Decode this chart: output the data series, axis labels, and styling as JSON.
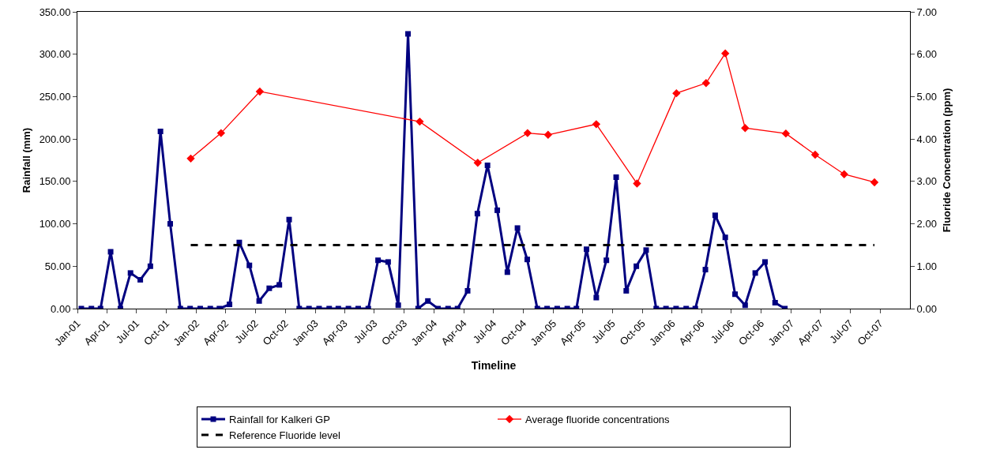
{
  "chart_data": {
    "type": "line",
    "xlabel": "Timeline",
    "ylabel": "Rainfall (mm)",
    "y2label": "Fluoride Concentration (ppm)",
    "xlim": [
      "2001-01-01",
      "2008-01-01"
    ],
    "xticks": [
      {
        "value": "2001-01-01",
        "label": "Jan-01"
      },
      {
        "value": "2001-04-01",
        "label": "Apr-01"
      },
      {
        "value": "2001-07-01",
        "label": "Jul-01"
      },
      {
        "value": "2001-10-01",
        "label": "Oct-01"
      },
      {
        "value": "2002-01-01",
        "label": "Jan-02"
      },
      {
        "value": "2002-04-01",
        "label": "Apr-02"
      },
      {
        "value": "2002-07-01",
        "label": "Jul-02"
      },
      {
        "value": "2002-10-01",
        "label": "Oct-02"
      },
      {
        "value": "2003-01-01",
        "label": "Jan-03"
      },
      {
        "value": "2003-04-01",
        "label": "Apr-03"
      },
      {
        "value": "2003-07-01",
        "label": "Jul-03"
      },
      {
        "value": "2003-10-01",
        "label": "Oct-03"
      },
      {
        "value": "2004-01-01",
        "label": "Jan-04"
      },
      {
        "value": "2004-04-01",
        "label": "Apr-04"
      },
      {
        "value": "2004-07-01",
        "label": "Jul-04"
      },
      {
        "value": "2004-10-01",
        "label": "Oct-04"
      },
      {
        "value": "2005-01-01",
        "label": "Jan-05"
      },
      {
        "value": "2005-04-01",
        "label": "Apr-05"
      },
      {
        "value": "2005-07-01",
        "label": "Jul-05"
      },
      {
        "value": "2005-10-01",
        "label": "Oct-05"
      },
      {
        "value": "2006-01-01",
        "label": "Jan-06"
      },
      {
        "value": "2006-04-01",
        "label": "Apr-06"
      },
      {
        "value": "2006-07-01",
        "label": "Jul-06"
      },
      {
        "value": "2006-10-01",
        "label": "Oct-06"
      },
      {
        "value": "2007-01-01",
        "label": "Jan-07"
      },
      {
        "value": "2007-04-01",
        "label": "Apr-07"
      },
      {
        "value": "2007-07-01",
        "label": "Jul-07"
      },
      {
        "value": "2007-10-01",
        "label": "Oct-07"
      }
    ],
    "ylim": [
      0,
      350
    ],
    "yticks": [
      {
        "value": 0,
        "label": "0.00"
      },
      {
        "value": 50,
        "label": "50.00"
      },
      {
        "value": 100,
        "label": "100.00"
      },
      {
        "value": 150,
        "label": "150.00"
      },
      {
        "value": 200,
        "label": "200.00"
      },
      {
        "value": 250,
        "label": "250.00"
      },
      {
        "value": 300,
        "label": "300.00"
      },
      {
        "value": 350,
        "label": "350.00"
      }
    ],
    "y2lim": [
      0,
      7
    ],
    "y2ticks": [
      {
        "value": 0,
        "label": "0.00"
      },
      {
        "value": 1,
        "label": "1.00"
      },
      {
        "value": 2,
        "label": "2.00"
      },
      {
        "value": 3,
        "label": "3.00"
      },
      {
        "value": 4,
        "label": "4.00"
      },
      {
        "value": 5,
        "label": "5.00"
      },
      {
        "value": 6,
        "label": "6.00"
      },
      {
        "value": 7,
        "label": "7.00"
      }
    ],
    "grid": false,
    "legend": "bottom",
    "series": [
      {
        "name": "Rainfall for Kalkeri GP",
        "color": "#000080",
        "marker": "square",
        "line_style": "solid",
        "x": [
          "2001-01-13",
          "2001-02-13",
          "2001-03-13",
          "2001-04-13",
          "2001-05-13",
          "2001-06-13",
          "2001-07-13",
          "2001-08-13",
          "2001-09-13",
          "2001-10-13",
          "2001-11-13",
          "2001-12-13",
          "2002-01-13",
          "2002-02-13",
          "2002-03-13",
          "2002-04-13",
          "2002-05-13",
          "2002-06-13",
          "2002-07-13",
          "2002-08-13",
          "2002-09-13",
          "2002-10-13",
          "2002-11-13",
          "2002-12-13",
          "2003-01-13",
          "2003-02-13",
          "2003-03-13",
          "2003-04-13",
          "2003-05-13",
          "2003-06-13",
          "2003-07-13",
          "2003-08-13",
          "2003-09-13",
          "2003-10-13",
          "2003-11-13",
          "2003-12-13",
          "2004-01-13",
          "2004-02-13",
          "2004-03-13",
          "2004-04-13",
          "2004-05-13",
          "2004-06-13",
          "2004-07-13",
          "2004-08-13",
          "2004-09-13",
          "2004-10-13",
          "2004-11-13",
          "2004-12-13",
          "2005-01-13",
          "2005-02-13",
          "2005-03-13",
          "2005-04-13",
          "2005-05-13",
          "2005-06-13",
          "2005-07-13",
          "2005-08-13",
          "2005-09-13",
          "2005-10-13",
          "2005-11-13",
          "2005-12-13",
          "2006-01-13",
          "2006-02-13",
          "2006-03-13",
          "2006-04-13",
          "2006-05-13",
          "2006-06-13",
          "2006-07-13",
          "2006-08-13",
          "2006-09-13",
          "2006-10-13",
          "2006-11-13",
          "2006-12-13"
        ],
        "values": [
          0,
          0,
          0,
          67,
          0,
          42,
          34,
          50,
          209,
          100,
          0,
          0,
          0,
          0,
          0,
          5,
          78,
          51,
          9,
          24,
          28,
          105,
          0,
          0,
          0,
          0,
          0,
          0,
          0,
          0,
          57,
          55,
          4,
          324,
          0,
          9,
          0,
          0,
          0,
          21,
          112,
          169,
          116,
          43,
          95,
          58,
          0,
          0,
          0,
          0,
          0,
          70,
          13,
          57,
          155,
          21,
          50,
          69,
          0,
          0,
          0,
          0,
          0,
          46,
          110,
          84,
          17,
          4,
          42,
          55,
          7,
          0
        ]
      },
      {
        "name": "Average fluoride concentrations",
        "color": "#ff0000",
        "marker": "diamond",
        "line_style": "solid",
        "axis": "y2",
        "x": [
          "2001-12-15",
          "2002-03-18",
          "2002-07-15",
          "2003-11-18",
          "2004-05-14",
          "2004-10-14",
          "2004-12-16",
          "2005-05-13",
          "2005-09-15",
          "2006-01-14",
          "2006-04-15",
          "2006-06-13",
          "2006-08-13",
          "2006-12-16",
          "2007-03-16",
          "2007-06-13",
          "2007-09-14"
        ],
        "values": [
          3.54,
          4.14,
          5.12,
          4.41,
          3.44,
          4.14,
          4.1,
          4.35,
          2.95,
          5.08,
          5.32,
          6.02,
          4.26,
          4.13,
          3.63,
          3.17,
          2.98
        ]
      },
      {
        "name": "Reference Fluoride level",
        "color": "#000000",
        "marker": "none",
        "line_style": "dashed",
        "axis": "y2",
        "x": [
          "2001-12-15",
          "2007-09-14"
        ],
        "values": [
          1.5,
          1.5
        ]
      }
    ]
  }
}
